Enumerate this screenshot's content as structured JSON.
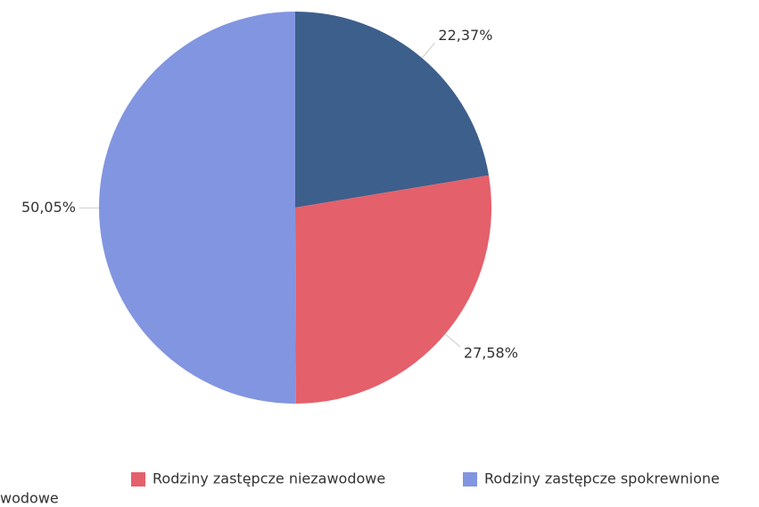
{
  "chart_data": {
    "type": "pie",
    "series": [
      {
        "name": "wodowe",
        "color": "#3d5f8c",
        "values": [
          22.37
        ],
        "value_labels": [
          "22,37%"
        ]
      },
      {
        "name": "Rodziny zastępcze niezawodowe",
        "color": "#e4606a",
        "values": [
          27.58
        ],
        "value_labels": [
          "27,58%"
        ]
      },
      {
        "name": "Rodziny zastępcze spokrewnione",
        "color": "#8295e0",
        "values": [
          50.05
        ],
        "value_labels": [
          "50,05%"
        ]
      }
    ]
  }
}
